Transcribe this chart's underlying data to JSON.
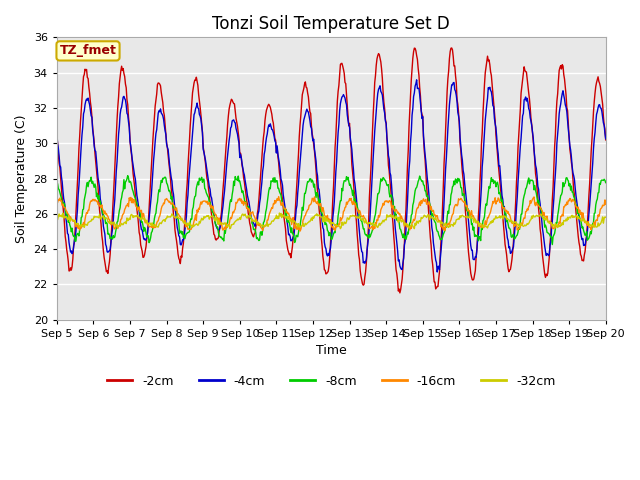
{
  "title": "Tonzi Soil Temperature Set D",
  "xlabel": "Time",
  "ylabel": "Soil Temperature (C)",
  "ylim": [
    20,
    36
  ],
  "total_days": 15,
  "series_colors": {
    "-2cm": "#cc0000",
    "-4cm": "#0000cc",
    "-8cm": "#00cc00",
    "-16cm": "#ff8800",
    "-32cm": "#cccc00"
  },
  "legend_labels": [
    "-2cm",
    "-4cm",
    "-8cm",
    "-16cm",
    "-32cm"
  ],
  "xtick_labels": [
    "Sep 5",
    "Sep 6",
    "Sep 7",
    "Sep 8",
    "Sep 9",
    "Sep 10",
    "Sep 11",
    "Sep 12",
    "Sep 13",
    "Sep 14",
    "Sep 15",
    "Sep 16",
    "Sep 17",
    "Sep 18",
    "Sep 19",
    "Sep 20"
  ],
  "background_color": "#e8e8e8",
  "annotation_text": "TZ_fmet",
  "annotation_bg": "#ffffcc",
  "annotation_border": "#ccaa00",
  "annotation_fg": "#990000",
  "title_fontsize": 12,
  "axis_label_fontsize": 9,
  "tick_fontsize": 8,
  "legend_fontsize": 9,
  "line_width": 1.0,
  "params_2cm": {
    "base": 28.5,
    "amp": 5.5,
    "phase": 0.58,
    "amp2": 0.0
  },
  "params_4cm": {
    "base": 28.2,
    "amp": 4.2,
    "phase": 0.62,
    "amp2": 0.0
  },
  "params_8cm": {
    "base": 26.3,
    "amp": 1.6,
    "phase": 0.72,
    "amp2": 0.0
  },
  "params_16cm": {
    "base": 26.0,
    "amp": 0.75,
    "phase": 0.82,
    "amp2": 0.0
  },
  "params_32cm": {
    "base": 25.6,
    "amp": 0.28,
    "phase": 0.92,
    "amp2": 0.0
  }
}
